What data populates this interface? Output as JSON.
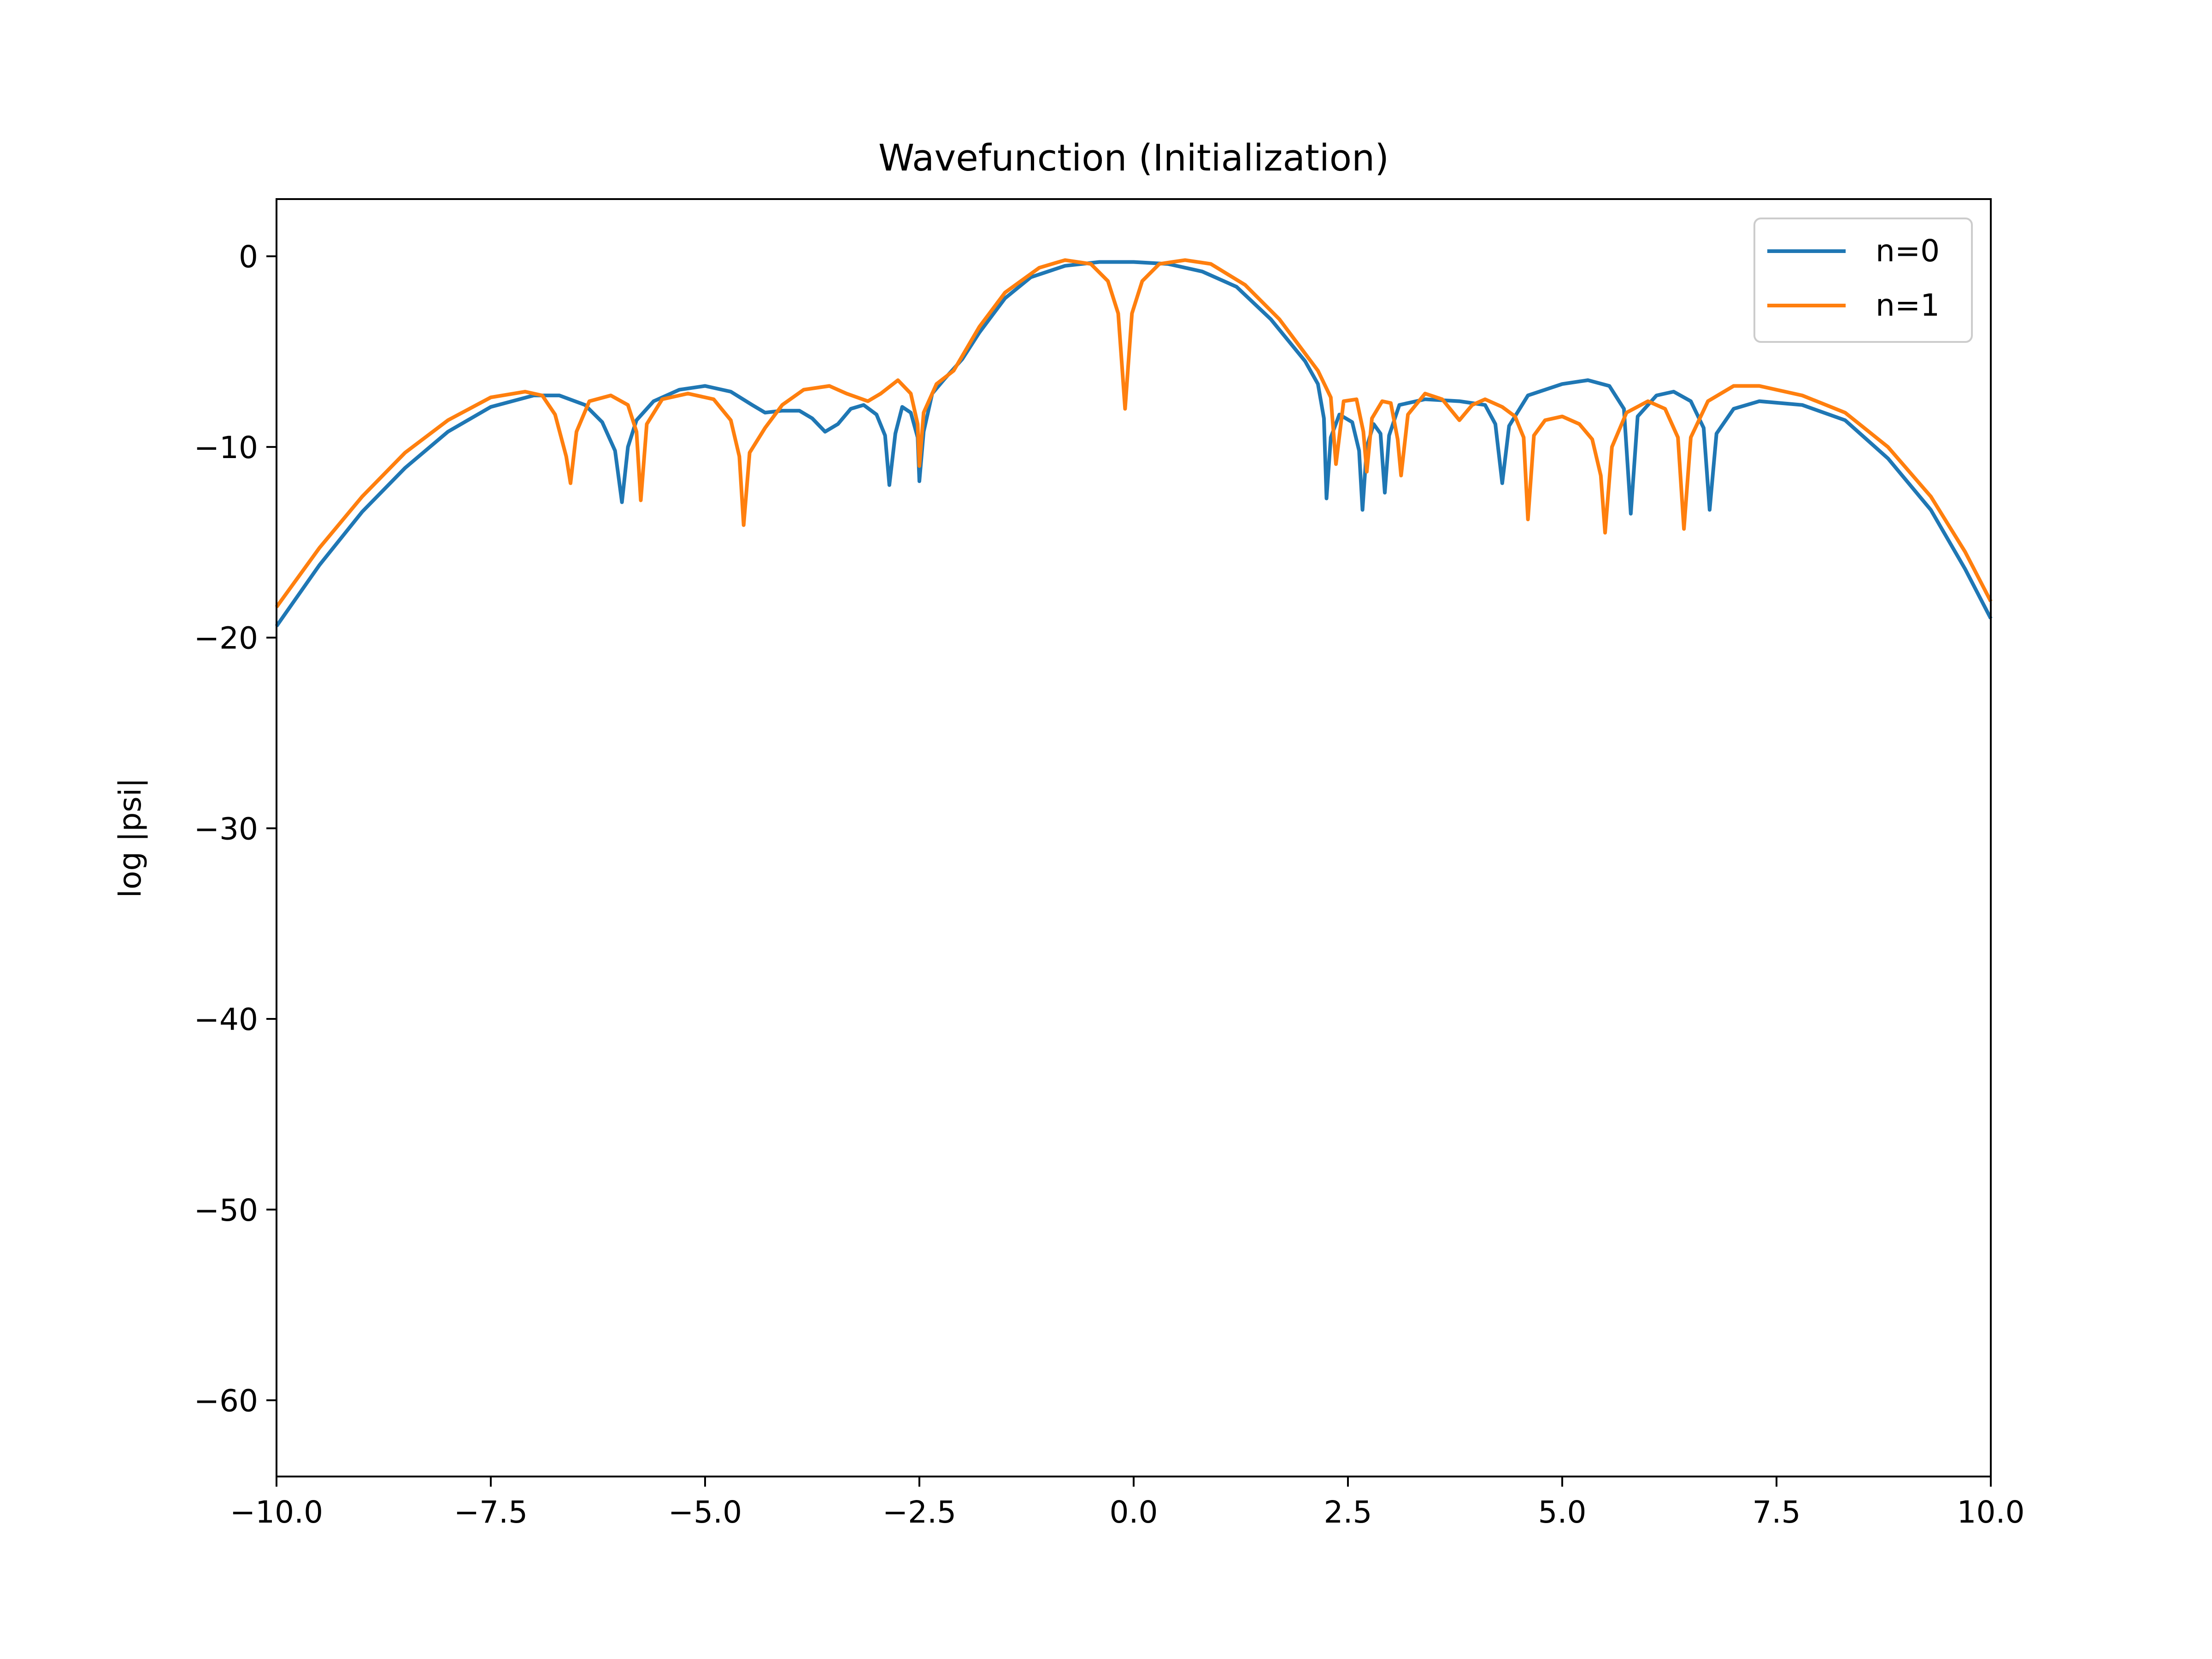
{
  "chart_data": {
    "type": "line",
    "title": "Wavefunction (Initialization)",
    "xlabel": "",
    "ylabel": "log |psi|",
    "xlim": [
      -10,
      10
    ],
    "ylim": [
      -64,
      3
    ],
    "xticks": [
      -10,
      -7.5,
      -5,
      -2.5,
      0,
      2.5,
      5,
      7.5,
      10
    ],
    "xtick_labels": [
      "−10.0",
      "−7.5",
      "−5.0",
      "−2.5",
      "0.0",
      "2.5",
      "5.0",
      "7.5",
      "10.0"
    ],
    "yticks": [
      0,
      -10,
      -20,
      -30,
      -40,
      -50,
      -60
    ],
    "ytick_labels": [
      "0",
      "−10",
      "−20",
      "−30",
      "−40",
      "−50",
      "−60"
    ],
    "grid": false,
    "legend_position": "upper right",
    "series": [
      {
        "name": "n=0",
        "color": "#1f77b4",
        "points": [
          [
            -10,
            -19.4
          ],
          [
            -9.5,
            -16.2
          ],
          [
            -9.0,
            -13.4
          ],
          [
            -8.5,
            -11.1
          ],
          [
            -8.0,
            -9.2
          ],
          [
            -7.5,
            -7.9
          ],
          [
            -7.0,
            -7.3
          ],
          [
            -6.7,
            -7.3
          ],
          [
            -6.4,
            -7.8
          ],
          [
            -6.2,
            -8.7
          ],
          [
            -6.05,
            -10.2
          ],
          [
            -5.97,
            -12.9
          ],
          [
            -5.9,
            -10.0
          ],
          [
            -5.8,
            -8.6
          ],
          [
            -5.6,
            -7.6
          ],
          [
            -5.3,
            -7.0
          ],
          [
            -5.0,
            -6.8
          ],
          [
            -4.7,
            -7.1
          ],
          [
            -4.45,
            -7.8
          ],
          [
            -4.3,
            -8.2
          ],
          [
            -4.1,
            -8.1
          ],
          [
            -3.9,
            -8.1
          ],
          [
            -3.75,
            -8.5
          ],
          [
            -3.6,
            -9.2
          ],
          [
            -3.45,
            -8.8
          ],
          [
            -3.3,
            -8.0
          ],
          [
            -3.15,
            -7.8
          ],
          [
            -3.0,
            -8.3
          ],
          [
            -2.9,
            -9.4
          ],
          [
            -2.85,
            -12.0
          ],
          [
            -2.78,
            -9.3
          ],
          [
            -2.7,
            -7.9
          ],
          [
            -2.6,
            -8.2
          ],
          [
            -2.52,
            -9.5
          ],
          [
            -2.5,
            -11.8
          ],
          [
            -2.45,
            -9.2
          ],
          [
            -2.35,
            -7.2
          ],
          [
            -2.2,
            -6.4
          ],
          [
            -2.0,
            -5.4
          ],
          [
            -1.8,
            -4.0
          ],
          [
            -1.5,
            -2.2
          ],
          [
            -1.2,
            -1.1
          ],
          [
            -0.8,
            -0.5
          ],
          [
            -0.4,
            -0.3
          ],
          [
            0.0,
            -0.3
          ],
          [
            0.4,
            -0.4
          ],
          [
            0.8,
            -0.8
          ],
          [
            1.2,
            -1.6
          ],
          [
            1.6,
            -3.3
          ],
          [
            2.0,
            -5.5
          ],
          [
            2.15,
            -6.7
          ],
          [
            2.22,
            -8.5
          ],
          [
            2.25,
            -12.7
          ],
          [
            2.3,
            -9.5
          ],
          [
            2.4,
            -8.3
          ],
          [
            2.55,
            -8.7
          ],
          [
            2.63,
            -10.2
          ],
          [
            2.67,
            -13.3
          ],
          [
            2.72,
            -10.0
          ],
          [
            2.8,
            -8.8
          ],
          [
            2.88,
            -9.3
          ],
          [
            2.93,
            -12.4
          ],
          [
            2.98,
            -9.4
          ],
          [
            3.1,
            -7.8
          ],
          [
            3.4,
            -7.5
          ],
          [
            3.8,
            -7.6
          ],
          [
            4.1,
            -7.8
          ],
          [
            4.22,
            -8.8
          ],
          [
            4.3,
            -11.9
          ],
          [
            4.38,
            -8.9
          ],
          [
            4.6,
            -7.3
          ],
          [
            5.0,
            -6.7
          ],
          [
            5.3,
            -6.5
          ],
          [
            5.55,
            -6.8
          ],
          [
            5.72,
            -8.0
          ],
          [
            5.8,
            -13.5
          ],
          [
            5.88,
            -8.4
          ],
          [
            6.1,
            -7.3
          ],
          [
            6.3,
            -7.1
          ],
          [
            6.5,
            -7.6
          ],
          [
            6.65,
            -9.0
          ],
          [
            6.72,
            -13.3
          ],
          [
            6.8,
            -9.3
          ],
          [
            7.0,
            -8.0
          ],
          [
            7.3,
            -7.6
          ],
          [
            7.8,
            -7.8
          ],
          [
            8.3,
            -8.6
          ],
          [
            8.8,
            -10.6
          ],
          [
            9.3,
            -13.3
          ],
          [
            9.7,
            -16.4
          ],
          [
            10,
            -19.0
          ]
        ]
      },
      {
        "name": "n=1",
        "color": "#ff7f0e",
        "points": [
          [
            -10,
            -18.4
          ],
          [
            -9.5,
            -15.3
          ],
          [
            -9.0,
            -12.6
          ],
          [
            -8.5,
            -10.3
          ],
          [
            -8.0,
            -8.6
          ],
          [
            -7.5,
            -7.4
          ],
          [
            -7.1,
            -7.1
          ],
          [
            -6.9,
            -7.3
          ],
          [
            -6.75,
            -8.3
          ],
          [
            -6.62,
            -10.5
          ],
          [
            -6.57,
            -11.9
          ],
          [
            -6.5,
            -9.2
          ],
          [
            -6.35,
            -7.6
          ],
          [
            -6.1,
            -7.3
          ],
          [
            -5.9,
            -7.8
          ],
          [
            -5.8,
            -9.2
          ],
          [
            -5.75,
            -12.8
          ],
          [
            -5.68,
            -8.8
          ],
          [
            -5.5,
            -7.5
          ],
          [
            -5.2,
            -7.2
          ],
          [
            -4.9,
            -7.5
          ],
          [
            -4.7,
            -8.6
          ],
          [
            -4.6,
            -10.5
          ],
          [
            -4.55,
            -14.1
          ],
          [
            -4.48,
            -10.3
          ],
          [
            -4.3,
            -9.0
          ],
          [
            -4.1,
            -7.8
          ],
          [
            -3.85,
            -7.0
          ],
          [
            -3.55,
            -6.8
          ],
          [
            -3.35,
            -7.2
          ],
          [
            -3.1,
            -7.6
          ],
          [
            -2.95,
            -7.2
          ],
          [
            -2.75,
            -6.5
          ],
          [
            -2.6,
            -7.2
          ],
          [
            -2.52,
            -8.8
          ],
          [
            -2.5,
            -11.0
          ],
          [
            -2.45,
            -8.2
          ],
          [
            -2.3,
            -6.7
          ],
          [
            -2.1,
            -6.0
          ],
          [
            -1.8,
            -3.7
          ],
          [
            -1.5,
            -1.9
          ],
          [
            -1.1,
            -0.6
          ],
          [
            -0.8,
            -0.2
          ],
          [
            -0.5,
            -0.4
          ],
          [
            -0.3,
            -1.3
          ],
          [
            -0.18,
            -3.0
          ],
          [
            -0.1,
            -8.0
          ],
          [
            -0.02,
            -3.0
          ],
          [
            0.1,
            -1.3
          ],
          [
            0.3,
            -0.4
          ],
          [
            0.6,
            -0.2
          ],
          [
            0.9,
            -0.4
          ],
          [
            1.3,
            -1.5
          ],
          [
            1.7,
            -3.3
          ],
          [
            1.95,
            -4.8
          ],
          [
            2.15,
            -6.0
          ],
          [
            2.3,
            -7.4
          ],
          [
            2.36,
            -10.9
          ],
          [
            2.45,
            -7.6
          ],
          [
            2.6,
            -7.5
          ],
          [
            2.68,
            -9.2
          ],
          [
            2.72,
            -11.3
          ],
          [
            2.78,
            -8.5
          ],
          [
            2.9,
            -7.6
          ],
          [
            3.0,
            -7.7
          ],
          [
            3.08,
            -9.6
          ],
          [
            3.12,
            -11.5
          ],
          [
            3.2,
            -8.3
          ],
          [
            3.4,
            -7.2
          ],
          [
            3.6,
            -7.5
          ],
          [
            3.8,
            -8.6
          ],
          [
            3.95,
            -7.8
          ],
          [
            4.1,
            -7.5
          ],
          [
            4.3,
            -7.9
          ],
          [
            4.45,
            -8.4
          ],
          [
            4.55,
            -9.5
          ],
          [
            4.6,
            -13.8
          ],
          [
            4.67,
            -9.4
          ],
          [
            4.8,
            -8.6
          ],
          [
            5.0,
            -8.4
          ],
          [
            5.2,
            -8.8
          ],
          [
            5.35,
            -9.6
          ],
          [
            5.45,
            -11.5
          ],
          [
            5.5,
            -14.5
          ],
          [
            5.58,
            -10.0
          ],
          [
            5.75,
            -8.2
          ],
          [
            6.0,
            -7.6
          ],
          [
            6.2,
            -8.0
          ],
          [
            6.35,
            -9.5
          ],
          [
            6.42,
            -14.3
          ],
          [
            6.5,
            -9.5
          ],
          [
            6.7,
            -7.6
          ],
          [
            7.0,
            -6.8
          ],
          [
            7.3,
            -6.8
          ],
          [
            7.8,
            -7.3
          ],
          [
            8.3,
            -8.2
          ],
          [
            8.8,
            -10.0
          ],
          [
            9.3,
            -12.6
          ],
          [
            9.7,
            -15.5
          ],
          [
            10,
            -18.1
          ]
        ]
      }
    ]
  }
}
